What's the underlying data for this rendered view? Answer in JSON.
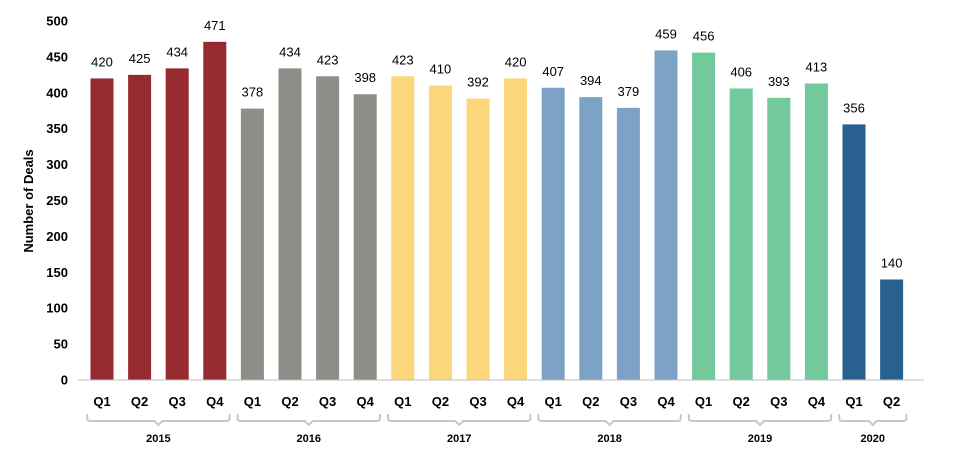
{
  "chart_data": {
    "type": "bar",
    "title": "",
    "xlabel": "",
    "ylabel": "Number of Deals",
    "ylim": [
      0,
      500
    ],
    "yticks": [
      0,
      50,
      100,
      150,
      200,
      250,
      300,
      350,
      400,
      450,
      500
    ],
    "grid": false,
    "groups": [
      {
        "year": "2015",
        "color": "#962a31",
        "quarters": [
          "Q1",
          "Q2",
          "Q3",
          "Q4"
        ],
        "values": [
          420,
          425,
          434,
          471
        ]
      },
      {
        "year": "2016",
        "color": "#8d8e88",
        "quarters": [
          "Q1",
          "Q2",
          "Q3",
          "Q4"
        ],
        "values": [
          378,
          434,
          423,
          398
        ]
      },
      {
        "year": "2017",
        "color": "#fbd67a",
        "quarters": [
          "Q1",
          "Q2",
          "Q3",
          "Q4"
        ],
        "values": [
          423,
          410,
          392,
          420
        ]
      },
      {
        "year": "2018",
        "color": "#7ca3c6",
        "quarters": [
          "Q1",
          "Q2",
          "Q3",
          "Q4"
        ],
        "values": [
          407,
          394,
          379,
          459
        ]
      },
      {
        "year": "2019",
        "color": "#72c99b",
        "quarters": [
          "Q1",
          "Q2",
          "Q3",
          "Q4"
        ],
        "values": [
          456,
          406,
          393,
          413
        ]
      },
      {
        "year": "2020",
        "color": "#286090",
        "quarters": [
          "Q1",
          "Q2"
        ],
        "values": [
          356,
          140
        ]
      }
    ]
  }
}
